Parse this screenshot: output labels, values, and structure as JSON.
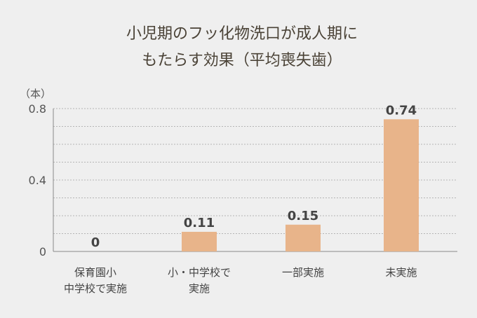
{
  "chart_data": {
    "type": "bar",
    "title_lines": [
      "小児期のフッ化物洗口が成人期に",
      "もたらす効果（平均喪失歯）"
    ],
    "ylabel": "（本）",
    "categories": [
      [
        "保育園小",
        "中学校で実施"
      ],
      [
        "小・中学校で",
        "実施"
      ],
      [
        "一部実施"
      ],
      [
        "未実施"
      ]
    ],
    "values": [
      0,
      0.11,
      0.15,
      0.74
    ],
    "data_labels": [
      "0",
      "0.11",
      "0.15",
      "0.74"
    ],
    "yticks": [
      {
        "value": 0,
        "label": "0"
      },
      {
        "value": 0.4,
        "label": "0.4"
      },
      {
        "value": 0.8,
        "label": "0.8"
      }
    ],
    "ylim": [
      0,
      0.8
    ],
    "grid": true,
    "bar_color": "#e8b48a"
  }
}
